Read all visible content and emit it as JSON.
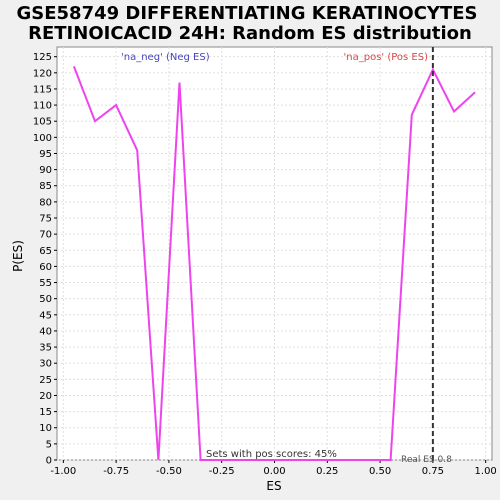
{
  "chart_data": {
    "type": "line",
    "title_line1": "GSE58749 DIFFERENTIATING KERATINOCYTES",
    "title_line2": "RETINOICACID 24H: Random ES distribution",
    "xlabel": "ES",
    "ylabel": "P(ES)",
    "xlim": [
      -1.03,
      1.03
    ],
    "ylim": [
      0,
      128
    ],
    "xticks": [
      -1.0,
      -0.75,
      -0.5,
      -0.25,
      0.0,
      0.25,
      0.5,
      0.75,
      1.0
    ],
    "xtick_labels": [
      "-1.00",
      "-0.75",
      "-0.50",
      "-0.25",
      "0.00",
      "0.25",
      "0.50",
      "0.75",
      "1.00"
    ],
    "yticks": [
      0,
      5,
      10,
      15,
      20,
      25,
      30,
      35,
      40,
      45,
      50,
      55,
      60,
      65,
      70,
      75,
      80,
      85,
      90,
      95,
      100,
      105,
      110,
      115,
      120,
      125
    ],
    "grid": true,
    "series": [
      {
        "color": "#ee44ee",
        "x": [
          -0.95,
          -0.85,
          -0.75,
          -0.65,
          -0.55,
          -0.45,
          -0.35,
          -0.25,
          -0.15,
          -0.05,
          0.05,
          0.15,
          0.25,
          0.35,
          0.45,
          0.55,
          0.65,
          0.75,
          0.85,
          0.95
        ],
        "y": [
          122,
          105,
          110,
          96,
          0,
          117,
          0,
          0,
          0,
          0,
          0,
          0,
          0,
          0,
          0,
          0,
          107,
          121,
          108,
          114
        ]
      }
    ],
    "real_es": 0.75,
    "annotations": {
      "neg_label": "'na_neg' (Neg ES)",
      "pos_label": "'na_pos' (Pos ES)",
      "pos_scores": "Sets with pos scores: 45%",
      "real_es_label": "Real ES 0.8"
    },
    "colors": {
      "line": "#ee44ee",
      "neg_label": "#4444bb",
      "pos_label": "#dd4444",
      "pos_scores": "#333333",
      "real_es_label": "#555555",
      "grid": "#e0e0e0",
      "plot_bg": "#ffffff",
      "page_bg": "#f0f0f0"
    }
  }
}
